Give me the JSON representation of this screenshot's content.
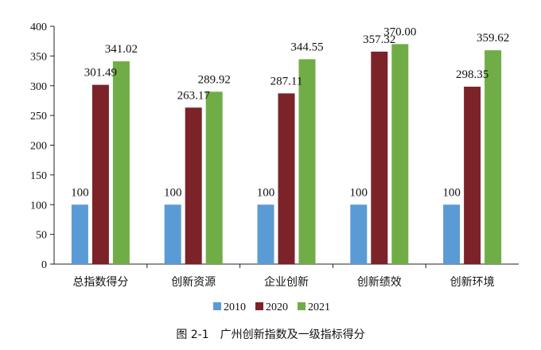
{
  "caption": "图 2-1　广州创新指数及一级指标得分",
  "chart_data": {
    "type": "bar",
    "categories": [
      "总指数得分",
      "创新资源",
      "企业创新",
      "创新绩效",
      "创新环境"
    ],
    "series": [
      {
        "name": "2010",
        "values": [
          100,
          100,
          100,
          100,
          100
        ],
        "labels": [
          "100",
          "100",
          "100",
          "100",
          "100"
        ],
        "color": "#5b9bd5"
      },
      {
        "name": "2020",
        "values": [
          301.49,
          263.17,
          287.11,
          357.32,
          298.35
        ],
        "labels": [
          "301.49",
          "263.17",
          "287.11",
          "357.32",
          "298.35"
        ],
        "color": "#7b2329"
      },
      {
        "name": "2021",
        "values": [
          341.02,
          289.92,
          344.55,
          370.0,
          359.62
        ],
        "labels": [
          "341.02",
          "289.92",
          "344.55",
          "370.00",
          "359.62"
        ],
        "color": "#70ad47"
      }
    ],
    "yticks": [
      "0",
      "50",
      "100",
      "150",
      "200",
      "250",
      "300",
      "350",
      "400"
    ],
    "ylim": [
      0,
      400
    ],
    "grid": false,
    "legend_position": "bottom"
  }
}
